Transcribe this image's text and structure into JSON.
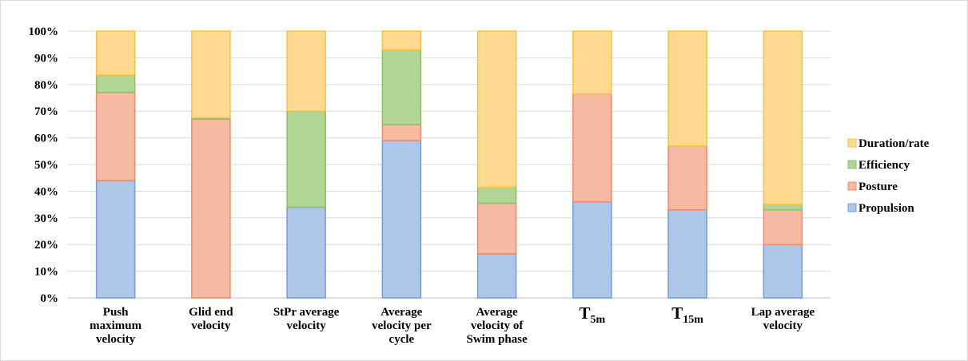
{
  "chart_data": {
    "type": "bar",
    "stacked": true,
    "percent_stacked": true,
    "title": "",
    "xlabel": "",
    "ylabel": "",
    "ylim": [
      0,
      100
    ],
    "yticks": [
      "0%",
      "10%",
      "20%",
      "30%",
      "40%",
      "50%",
      "60%",
      "70%",
      "80%",
      "90%",
      "100%"
    ],
    "grid": true,
    "legend_position": "right",
    "categories": [
      {
        "lines": [
          "Push",
          "maximum",
          "velocity"
        ]
      },
      {
        "lines": [
          "Glid end",
          "velocity"
        ]
      },
      {
        "lines": [
          "StPr average",
          "velocity"
        ]
      },
      {
        "lines": [
          "Average",
          "velocity per",
          "cycle"
        ]
      },
      {
        "lines": [
          "Average",
          "velocity of",
          "Swim phase"
        ]
      },
      {
        "base": "T",
        "sub": "5m"
      },
      {
        "base": "T",
        "sub": "15m"
      },
      {
        "lines": [
          "Lap average",
          "velocity"
        ]
      }
    ],
    "series": [
      {
        "name": "Propulsion",
        "color": "#aec7e8",
        "stroke": "#6d9fd6",
        "values": [
          44,
          0,
          34,
          59,
          16.5,
          36,
          33,
          20
        ]
      },
      {
        "name": "Posture",
        "color": "#f6b9a2",
        "stroke": "#ef8a62",
        "values": [
          33,
          67,
          0,
          6,
          19,
          40.5,
          24,
          13
        ]
      },
      {
        "name": "Efficiency",
        "color": "#b1d595",
        "stroke": "#8cc063",
        "values": [
          6.5,
          0.5,
          36,
          28,
          6,
          0,
          0,
          2
        ]
      },
      {
        "name": "Duration/rate",
        "color": "#ffd98f",
        "stroke": "#f5c242",
        "values": [
          16.5,
          32.5,
          30,
          7,
          58.5,
          23.5,
          43,
          65
        ]
      }
    ],
    "legend_order": [
      "Duration/rate",
      "Efficiency",
      "Posture",
      "Propulsion"
    ]
  }
}
